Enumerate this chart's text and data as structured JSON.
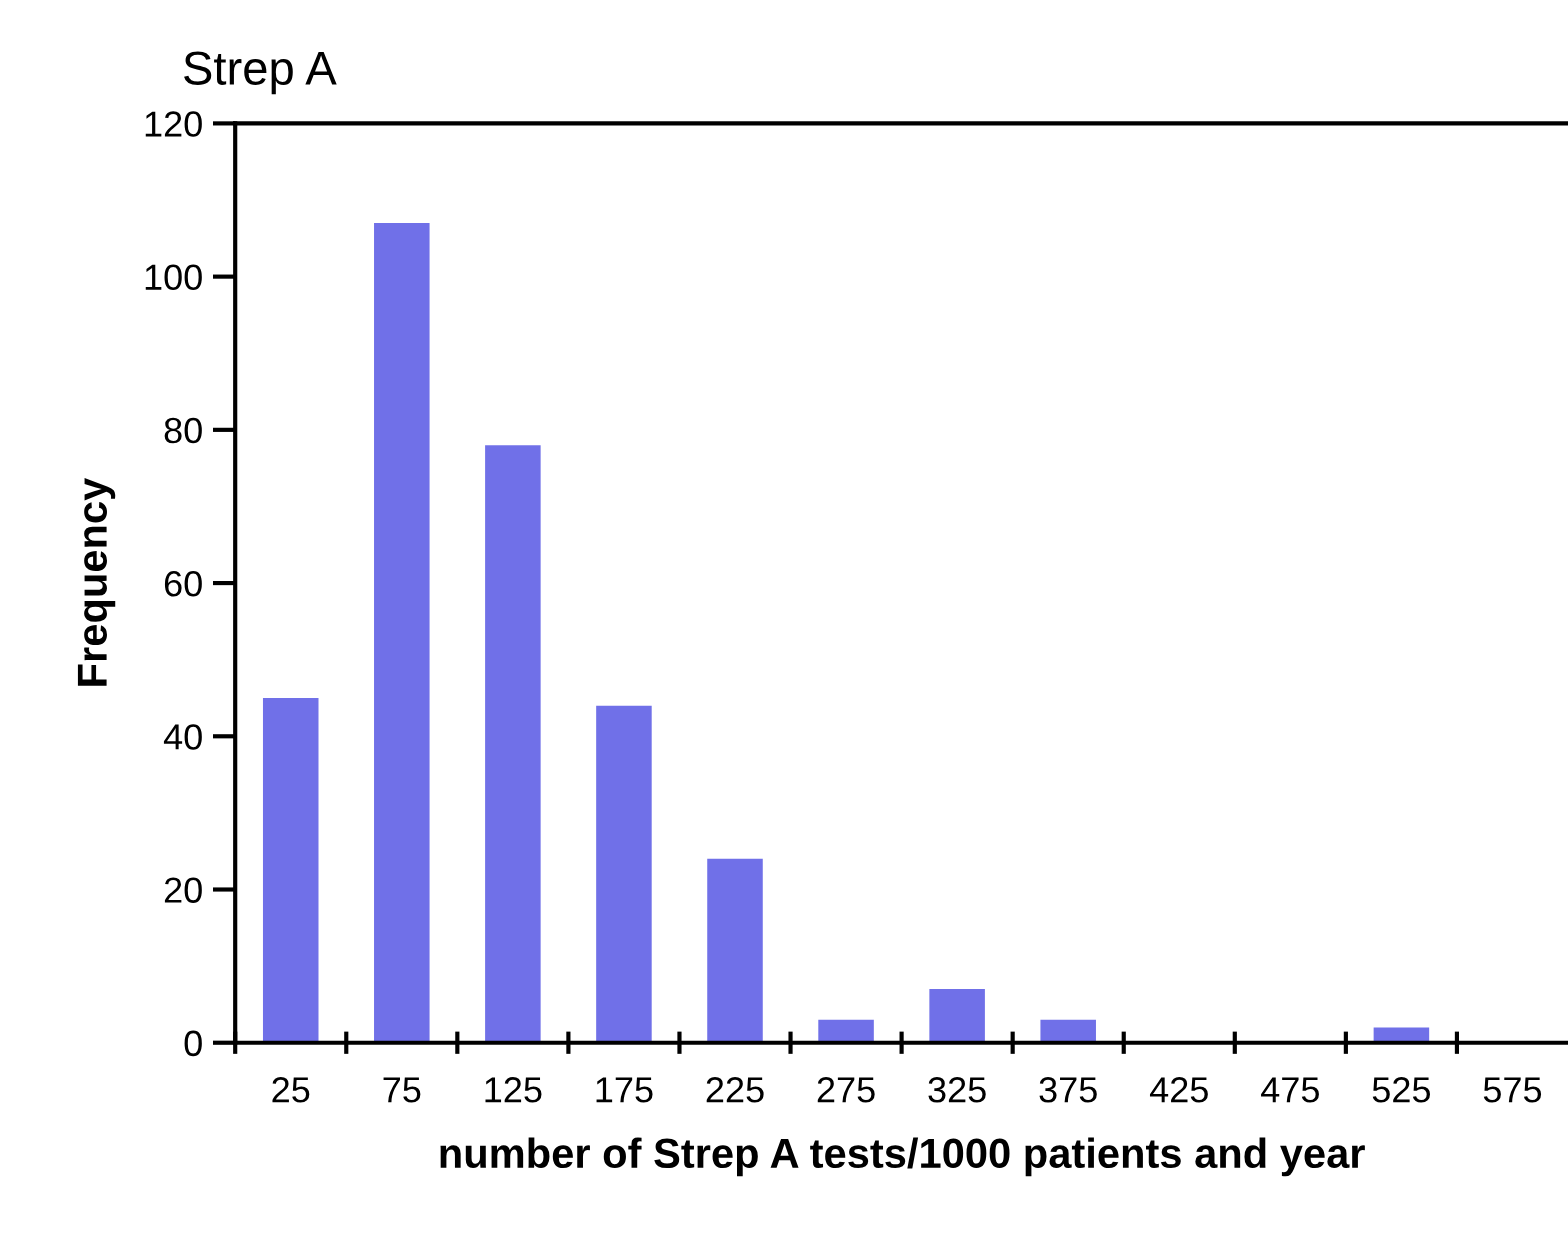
{
  "chart_data": {
    "type": "bar",
    "title": "Strep A",
    "xlabel": "number of Strep A tests/1000 patients and year",
    "ylabel": "Frequency",
    "categories": [
      "25",
      "75",
      "125",
      "175",
      "225",
      "275",
      "325",
      "375",
      "425",
      "475",
      "525",
      "575"
    ],
    "values": [
      45,
      107,
      78,
      44,
      24,
      3,
      7,
      3,
      0,
      0,
      2,
      0
    ],
    "color": "#7070e8",
    "ylim": [
      0,
      120
    ],
    "yticks": [
      0,
      20,
      40,
      60,
      80,
      100,
      120
    ],
    "grid": false,
    "legend": false
  }
}
